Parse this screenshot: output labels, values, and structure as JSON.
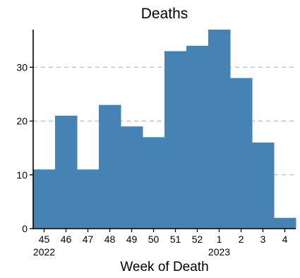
{
  "chart_data": {
    "type": "bar",
    "title": "Deaths",
    "xlabel": "Week of Death",
    "ylabel": "",
    "categories": [
      "45",
      "46",
      "47",
      "48",
      "49",
      "50",
      "51",
      "52",
      "1",
      "2",
      "3",
      "4"
    ],
    "year_labels": [
      {
        "text": "2022",
        "category": "45"
      },
      {
        "text": "2023",
        "category": "1"
      }
    ],
    "values": [
      11,
      21,
      11,
      23,
      19,
      17,
      33,
      34,
      37,
      28,
      16,
      2
    ],
    "ylim": [
      0,
      37
    ],
    "yticks": [
      0,
      10,
      20,
      30
    ],
    "grid": "horizontal dashed at y ticks",
    "bar_color": "#4682B4",
    "grid_color": "#BEBEBE"
  }
}
